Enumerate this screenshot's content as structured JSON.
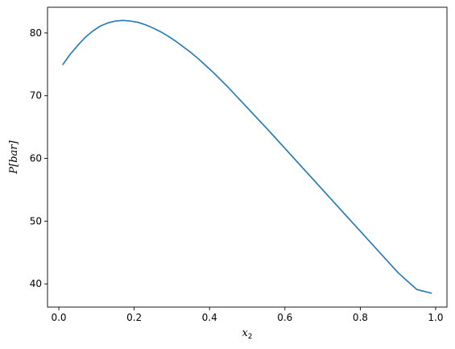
{
  "chart_data": {
    "type": "line",
    "title": "",
    "xlabel": "x",
    "xlabel_subscript": "2",
    "ylabel": "P[bar]",
    "xlim": [
      -0.03,
      1.03
    ],
    "ylim": [
      36.3,
      84.1
    ],
    "xticks": [
      0.0,
      0.2,
      0.4,
      0.6,
      0.8,
      1.0
    ],
    "xtick_labels": [
      "0.0",
      "0.2",
      "0.4",
      "0.6",
      "0.8",
      "1.0"
    ],
    "yticks": [
      40,
      50,
      60,
      70,
      80
    ],
    "ytick_labels": [
      "40",
      "50",
      "60",
      "70",
      "80"
    ],
    "grid": false,
    "legend": "none",
    "series": [
      {
        "color": "#1f77b4",
        "x": [
          0.01,
          0.03,
          0.05,
          0.07,
          0.09,
          0.11,
          0.13,
          0.15,
          0.17,
          0.19,
          0.21,
          0.23,
          0.25,
          0.27,
          0.29,
          0.31,
          0.33,
          0.35,
          0.37,
          0.39,
          0.41,
          0.45,
          0.5,
          0.55,
          0.6,
          0.65,
          0.7,
          0.75,
          0.8,
          0.85,
          0.9,
          0.95,
          0.99
        ],
        "y": [
          74.9,
          76.6,
          78.0,
          79.3,
          80.3,
          81.1,
          81.6,
          81.9,
          82.0,
          81.9,
          81.7,
          81.3,
          80.8,
          80.2,
          79.5,
          78.7,
          77.8,
          76.9,
          75.9,
          74.8,
          73.7,
          71.3,
          68.1,
          64.9,
          61.6,
          58.3,
          55.0,
          51.7,
          48.4,
          45.1,
          41.8,
          39.1,
          38.5
        ]
      }
    ]
  }
}
